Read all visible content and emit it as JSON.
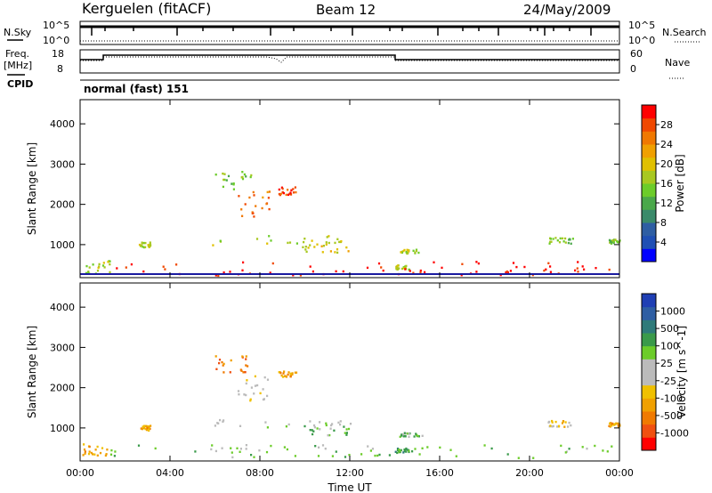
{
  "header": {
    "station": "Kerguelen (fitACF)",
    "beam": "Beam 12",
    "date": "24/May/2009"
  },
  "top_panels": {
    "nsky_label": "N.Sky",
    "nsky_ticks": [
      "10^5",
      "10^0"
    ],
    "nsearch_label": "N.Search",
    "nsearch_ticks": [
      "10^5",
      "10^0"
    ],
    "freq_label_1": "Freq.",
    "freq_label_2": "[MHz]",
    "freq_ticks": [
      "18",
      "8"
    ],
    "nave_label": "Nave",
    "nave_ticks": [
      "60",
      "0"
    ],
    "cpid_label": "CPID",
    "cpid_text": "normal (fast) 151"
  },
  "colorbars": {
    "power": {
      "label": "Power [dB]",
      "ticks": [
        "28",
        "24",
        "20",
        "16",
        "12",
        "8",
        "4"
      ],
      "colors": [
        "#0000ff",
        "#1f4fb4",
        "#2e5ea3",
        "#3a8a6a",
        "#4aa84a",
        "#6ccc2a",
        "#a8c820",
        "#e0c000",
        "#f0a000",
        "#f07800",
        "#f04800",
        "#ff0000"
      ]
    },
    "velocity": {
      "label": "Velocity [m s^-1]",
      "ticks": [
        "1000",
        "500",
        "100",
        "25",
        "-25",
        "-100",
        "-500",
        "-1000"
      ],
      "colors": [
        "#ff0000",
        "#f05010",
        "#f07a00",
        "#f0a000",
        "#f0c000",
        "#bbbbbb",
        "#bbbbbb",
        "#6ccc2a",
        "#3a9a4a",
        "#2e7a7a",
        "#2e5ea3",
        "#1f3fb4"
      ]
    }
  },
  "chart_data": [
    {
      "type": "heatmap",
      "title": "Kerguelen (fitACF) Beam 12",
      "xlabel": "Time UT",
      "ylabel": "Slant Range [km]",
      "x_ticks": [
        "00:00",
        "04:00",
        "08:00",
        "12:00",
        "16:00",
        "20:00",
        "00:00"
      ],
      "y_ticks": [
        "1000",
        "2000",
        "3000",
        "4000"
      ],
      "xlim_hours": [
        0,
        24
      ],
      "ylim_km": [
        180,
        4600
      ],
      "colorbar": "Power [dB]",
      "clusters": [
        {
          "t0": 0.1,
          "t1": 1.3,
          "r0": 300,
          "r1": 620,
          "value": 6
        },
        {
          "t0": 2.6,
          "t1": 3.1,
          "r0": 950,
          "r1": 1080,
          "value": 6
        },
        {
          "t0": 6.0,
          "t1": 7.6,
          "r0": 2400,
          "r1": 2850,
          "value": 5
        },
        {
          "t0": 7.0,
          "t1": 8.4,
          "r0": 1700,
          "r1": 2350,
          "value": 9
        },
        {
          "t0": 8.8,
          "t1": 9.6,
          "r0": 2250,
          "r1": 2450,
          "value": 10
        },
        {
          "t0": 5.8,
          "t1": 11.8,
          "r0": 1000,
          "r1": 1250,
          "value": 6
        },
        {
          "t0": 9.8,
          "t1": 12.0,
          "r0": 800,
          "r1": 1150,
          "value": 7
        },
        {
          "t0": 14.0,
          "t1": 14.6,
          "r0": 400,
          "r1": 520,
          "value": 6
        },
        {
          "t0": 14.2,
          "t1": 15.2,
          "r0": 800,
          "r1": 900,
          "value": 6
        },
        {
          "t0": 20.8,
          "t1": 21.9,
          "r0": 1050,
          "r1": 1200,
          "value": 5
        },
        {
          "t0": 23.5,
          "t1": 24.0,
          "r0": 1050,
          "r1": 1150,
          "value": 5
        },
        {
          "t0": 1.0,
          "t1": 24.0,
          "r0": 250,
          "r1": 600,
          "value": 11
        }
      ]
    },
    {
      "type": "heatmap",
      "title": "Kerguelen (fitACF) Beam 12",
      "xlabel": "Time UT",
      "ylabel": "Slant Range [km]",
      "x_ticks": [
        "00:00",
        "04:00",
        "08:00",
        "12:00",
        "16:00",
        "20:00",
        "00:00"
      ],
      "y_ticks": [
        "1000",
        "2000",
        "3000",
        "4000"
      ],
      "xlim_hours": [
        0,
        24
      ],
      "ylim_km": [
        180,
        4600
      ],
      "colorbar": "Velocity [m s^-1]",
      "clusters": [
        {
          "t0": 0.1,
          "t1": 1.3,
          "r0": 300,
          "r1": 620,
          "value": 3
        },
        {
          "t0": 2.6,
          "t1": 3.1,
          "r0": 950,
          "r1": 1080,
          "value": 3
        },
        {
          "t0": 6.0,
          "t1": 7.6,
          "r0": 2400,
          "r1": 2850,
          "value": 2
        },
        {
          "t0": 7.0,
          "t1": 8.4,
          "r0": 1700,
          "r1": 2350,
          "value": 5
        },
        {
          "t0": 8.8,
          "t1": 9.6,
          "r0": 2250,
          "r1": 2450,
          "value": 3
        },
        {
          "t0": 5.8,
          "t1": 11.8,
          "r0": 1000,
          "r1": 1250,
          "value": 6
        },
        {
          "t0": 9.8,
          "t1": 12.0,
          "r0": 800,
          "r1": 1150,
          "value": 7
        },
        {
          "t0": 14.0,
          "t1": 14.6,
          "r0": 400,
          "r1": 520,
          "value": 8
        },
        {
          "t0": 14.2,
          "t1": 15.2,
          "r0": 800,
          "r1": 900,
          "value": 7
        },
        {
          "t0": 20.8,
          "t1": 21.9,
          "r0": 1050,
          "r1": 1200,
          "value": 4
        },
        {
          "t0": 23.5,
          "t1": 24.0,
          "r0": 1050,
          "r1": 1150,
          "value": 3
        },
        {
          "t0": 1.0,
          "t1": 24.0,
          "r0": 250,
          "r1": 600,
          "value": 7
        }
      ]
    }
  ]
}
